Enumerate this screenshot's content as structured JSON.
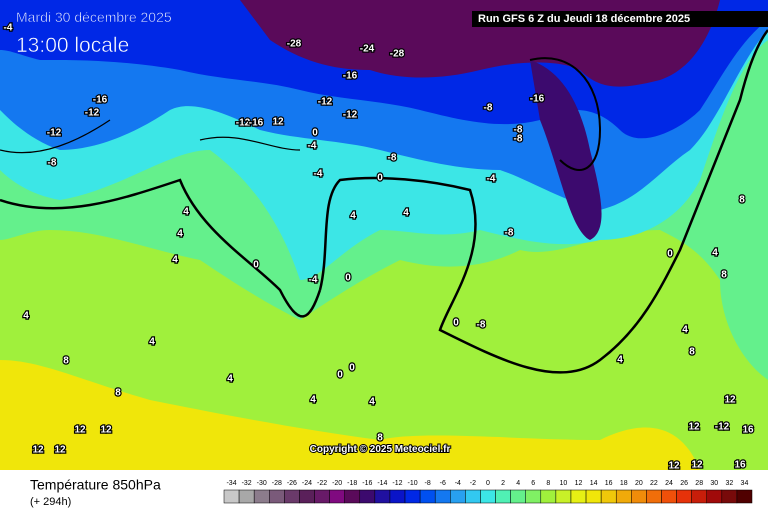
{
  "header": {
    "date": "Mardi 30 décembre 2025",
    "time": "13:00 locale",
    "run": "Run GFS 6 Z du Jeudi 18 décembre 2025"
  },
  "copyright": "Copyright © 2025 Meteociel.fr",
  "legend": {
    "title": "Température 850hPa",
    "subtitle": "(+ 294h)",
    "scale": [
      -34,
      -32,
      -30,
      -28,
      -26,
      -24,
      -22,
      -20,
      -18,
      -16,
      -14,
      -12,
      -10,
      -8,
      -6,
      -4,
      -2,
      0,
      2,
      4,
      6,
      8,
      10,
      12,
      14,
      16,
      18,
      20,
      22,
      24,
      26,
      28,
      30,
      32,
      34
    ],
    "colors": [
      "#c8c8c8",
      "#a8a8a8",
      "#8c7c8c",
      "#7a5a7a",
      "#6a3a6a",
      "#5a205a",
      "#681a68",
      "#800a80",
      "#5a0a5a",
      "#3c0a6e",
      "#2010a0",
      "#0a14c8",
      "#0028e6",
      "#0050f0",
      "#1478f0",
      "#28a0f0",
      "#32c8f0",
      "#3ce6e6",
      "#50f0b4",
      "#64f08c",
      "#80f064",
      "#a0f03c",
      "#c8f028",
      "#e6f014",
      "#f0e60a",
      "#f0c80a",
      "#f0aa0a",
      "#f08c0a",
      "#f06e0a",
      "#f0500a",
      "#e6320a",
      "#c81e0a",
      "#a00a0a",
      "#780a0a",
      "#500000"
    ]
  },
  "map": {
    "labels": [
      -28,
      -24,
      -28,
      -16,
      -12,
      -12,
      -12,
      12,
      -16,
      0,
      -4,
      -4,
      -8,
      -8,
      -16,
      -8,
      -8,
      -4,
      0,
      4,
      4,
      4,
      0,
      -4,
      0,
      4,
      4,
      -8,
      0,
      -8,
      0,
      4,
      4,
      8,
      4,
      8,
      8,
      4,
      12,
      12,
      12,
      12,
      4,
      0,
      0,
      4,
      4,
      8,
      12,
      -12,
      16,
      12,
      12,
      12,
      16,
      8,
      8,
      4,
      -12,
      -8,
      -16,
      -12,
      -4
    ]
  }
}
